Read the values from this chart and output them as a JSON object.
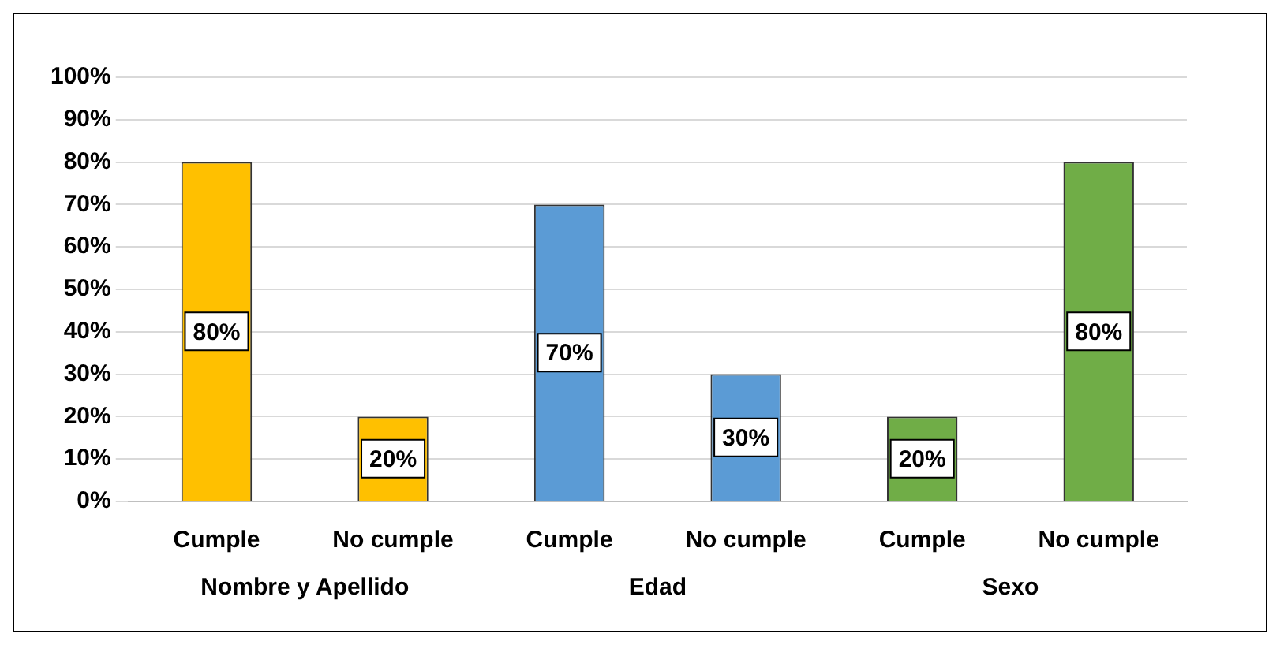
{
  "chart_data": {
    "type": "bar",
    "categories": [
      "Cumple",
      "No cumple",
      "Cumple",
      "No cumple",
      "Cumple",
      "No cumple"
    ],
    "values": [
      80,
      20,
      70,
      30,
      20,
      80
    ],
    "colors": [
      "#ffc000",
      "#ffc000",
      "#5b9bd5",
      "#5b9bd5",
      "#70ad47",
      "#70ad47"
    ],
    "ylim": [
      0,
      100
    ],
    "yticks": [
      {
        "value": 0,
        "label": "0%"
      },
      {
        "value": 10,
        "label": "10%"
      },
      {
        "value": 20,
        "label": "20%"
      },
      {
        "value": 30,
        "label": "30%"
      },
      {
        "value": 40,
        "label": "40%"
      },
      {
        "value": 50,
        "label": "50%"
      },
      {
        "value": 60,
        "label": "60%"
      },
      {
        "value": 70,
        "label": "70%"
      },
      {
        "value": 80,
        "label": "80%"
      },
      {
        "value": 90,
        "label": "90%"
      },
      {
        "value": 100,
        "label": "100%"
      }
    ],
    "value_labels": [
      "80%",
      "20%",
      "70%",
      "30%",
      "20%",
      "80%"
    ],
    "annotations": [
      "Nombre y Apellido",
      "Edad",
      "Sexo"
    ],
    "grid": "y",
    "legend": false
  }
}
